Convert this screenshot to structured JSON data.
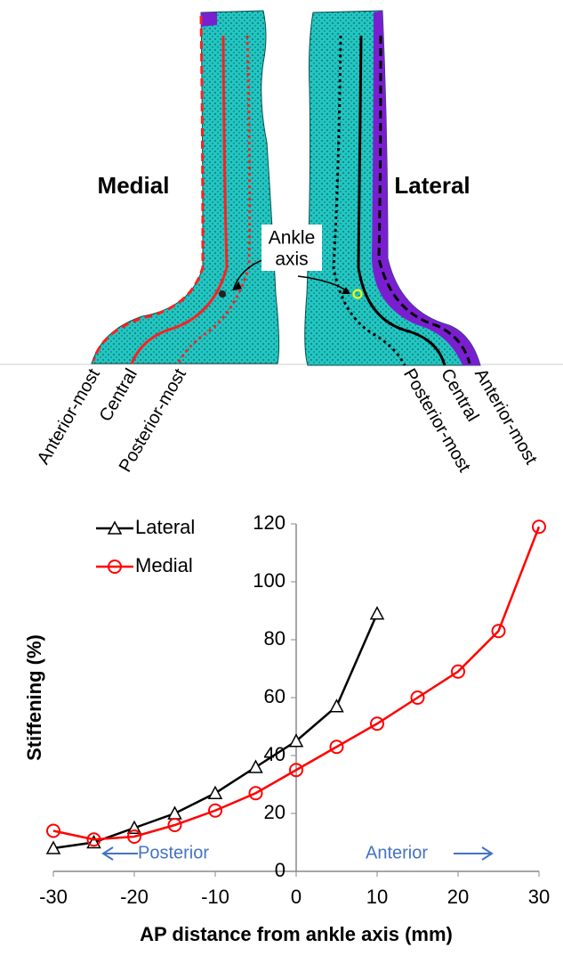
{
  "diagram": {
    "medial_label": "Medial",
    "lateral_label": "Lateral",
    "ankle_axis_label": [
      "Ankle",
      "axis"
    ],
    "medial_lines": [
      "Anterior-most",
      "Central",
      "Posterior-most"
    ],
    "lateral_lines": [
      "Posterior-most",
      "Central",
      "Anterior-most"
    ]
  },
  "chart_data": {
    "type": "line",
    "xlabel": "AP distance from ankle axis (mm)",
    "ylabel": "Stiffening (%)",
    "xlim": [
      -30,
      30
    ],
    "xticks": [
      -30,
      -20,
      -10,
      0,
      10,
      20,
      30
    ],
    "ylim": [
      0,
      120
    ],
    "yticks": [
      0,
      20,
      40,
      60,
      80,
      100,
      120
    ],
    "legend": "upper left",
    "series": [
      {
        "name": "Lateral",
        "color": "#000000",
        "marker": "triangle",
        "x": [
          -30,
          -25,
          -20,
          -15,
          -10,
          -5,
          0,
          5,
          10
        ],
        "values": [
          8,
          10,
          15,
          20,
          27,
          36,
          45,
          57,
          89
        ]
      },
      {
        "name": "Medial",
        "color": "#ff0000",
        "marker": "circle",
        "x": [
          -30,
          -25,
          -20,
          -15,
          -10,
          -5,
          0,
          5,
          10,
          15,
          20,
          25,
          30
        ],
        "values": [
          14,
          11,
          12,
          16,
          21,
          27,
          35,
          43,
          51,
          60,
          69,
          83,
          119
        ]
      }
    ],
    "annotations": [
      "Posterior",
      "Anterior"
    ],
    "annotation_color": "#4472c4"
  }
}
